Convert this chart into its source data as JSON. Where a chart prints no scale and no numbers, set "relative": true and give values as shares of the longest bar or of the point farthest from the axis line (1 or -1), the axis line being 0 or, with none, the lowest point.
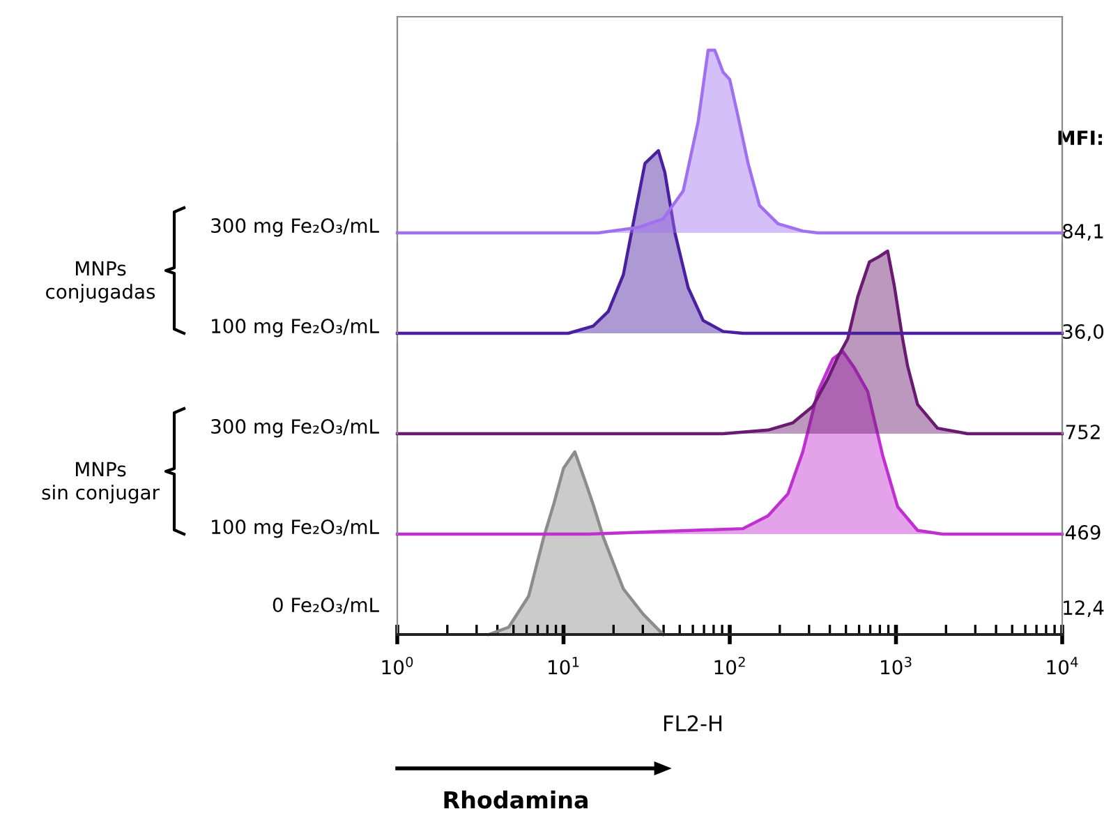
{
  "chart_data": [
    {
      "type": "area",
      "relative": true,
      "title": "MFI:",
      "log": "x",
      "xlim": [
        1,
        10000
      ],
      "tick_labels": false,
      "annotations": [
        "84,1",
        "MNPs\nconjugadas"
      ],
      "series": [
        {
          "name": "300 mg Fe₂O₃/mL",
          "color": "#a070f0",
          "x": [
            1,
            10,
            16.2,
            28.2,
            39.8,
            52.5,
            64.6,
            74.1,
            81.3,
            91.2,
            100,
            112,
            129,
            151,
            195,
            275,
            339,
            10000
          ],
          "values": [
            0,
            0,
            0,
            0.03,
            0.077,
            0.23,
            0.61,
            1.0,
            1.0,
            0.88,
            0.84,
            0.64,
            0.38,
            0.15,
            0.05,
            0.01,
            0,
            0
          ]
        }
      ]
    },
    {
      "type": "area",
      "relative": true,
      "log": "x",
      "xlim": [
        1,
        10000
      ],
      "tick_labels": false,
      "annotations": [
        "36,0"
      ],
      "series": [
        {
          "name": "100 mg Fe₂O₃/mL",
          "color": "#4a1fa0",
          "x": [
            1,
            10.7,
            15.1,
            18.6,
            22.9,
            26.9,
            30.9,
            37.2,
            40.7,
            46.8,
            56.2,
            69.2,
            91.2,
            120,
            10000
          ],
          "values": [
            0,
            0,
            0.04,
            0.12,
            0.32,
            0.65,
            0.93,
            1.0,
            0.88,
            0.55,
            0.25,
            0.07,
            0.01,
            0,
            0
          ]
        }
      ]
    },
    {
      "type": "area",
      "relative": true,
      "log": "x",
      "xlim": [
        1,
        10000
      ],
      "tick_labels": false,
      "annotations": [
        "752",
        "MNPs\nsin conjugar"
      ],
      "series": [
        {
          "name": "300 mg Fe₂O₃/mL",
          "color": "#6a1a70",
          "x": [
            1,
            91.2,
            170,
            240,
            316,
            389,
            447,
            513,
            589,
            692,
            794,
            891,
            977,
            1096,
            1175,
            1349,
            1778,
            2692,
            10000
          ],
          "values": [
            0,
            0,
            0.02,
            0.06,
            0.15,
            0.3,
            0.42,
            0.52,
            0.75,
            0.94,
            0.97,
            1.0,
            0.81,
            0.52,
            0.37,
            0.16,
            0.03,
            0,
            0
          ]
        }
      ]
    },
    {
      "type": "area",
      "relative": true,
      "log": "x",
      "xlim": [
        1,
        10000
      ],
      "tick_labels": false,
      "annotations": [
        "469"
      ],
      "series": [
        {
          "name": "100 mg Fe₂O₃/mL",
          "color": "#c030d0",
          "x": [
            1,
            14.1,
            120,
            170,
            224,
            275,
            339,
            417,
            479,
            562,
            676,
            832,
            1023,
            1349,
            1905,
            10000
          ],
          "values": [
            0,
            0,
            0.03,
            0.1,
            0.22,
            0.45,
            0.78,
            0.96,
            1.0,
            0.91,
            0.78,
            0.43,
            0.15,
            0.02,
            0,
            0
          ]
        }
      ]
    },
    {
      "type": "area",
      "relative": true,
      "log": "x",
      "xlim": [
        1,
        10000
      ],
      "xlabel": "FL2-H",
      "annotations": [
        "12,4",
        "Rhodamina"
      ],
      "xticks": [
        {
          "value": 1,
          "label": "10$^{0}$"
        },
        {
          "value": 10,
          "label": "10$^{1}$"
        },
        {
          "value": 100,
          "label": "10$^{2}$"
        },
        {
          "value": 1000,
          "label": "10$^{3}$"
        },
        {
          "value": 10000,
          "label": "10$^{4}$"
        }
      ],
      "series": [
        {
          "name": "0 Fe₂O₃/mL",
          "color": "#8c8c8c",
          "x": [
            3.55,
            4.68,
            6.17,
            7.59,
            8.71,
            10,
            11.7,
            13.5,
            15.1,
            17.4,
            22.9,
            30.2,
            39.8
          ],
          "values": [
            0,
            0.04,
            0.21,
            0.53,
            0.71,
            0.91,
            1.0,
            0.84,
            0.71,
            0.53,
            0.25,
            0.11,
            0
          ]
        }
      ]
    }
  ]
}
